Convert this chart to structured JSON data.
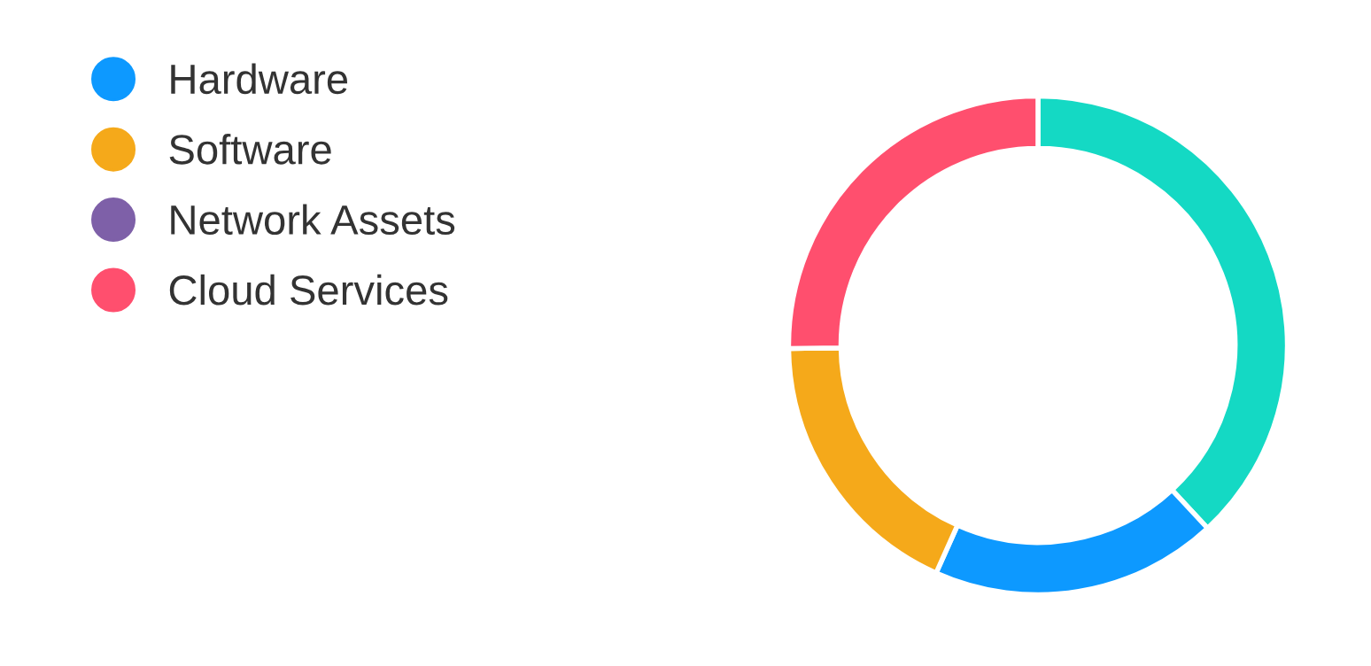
{
  "chart_data": {
    "type": "donut",
    "categories": [
      null,
      "Hardware",
      "Software",
      "Network Assets",
      "Cloud Services"
    ],
    "values": [
      38.1,
      18.6,
      18.1,
      0,
      25.2
    ],
    "colors": [
      "#14d9c4",
      "#0d99ff",
      "#f5a91a",
      "#7e60a8",
      "#ff4f6e"
    ],
    "legend": "left"
  }
}
